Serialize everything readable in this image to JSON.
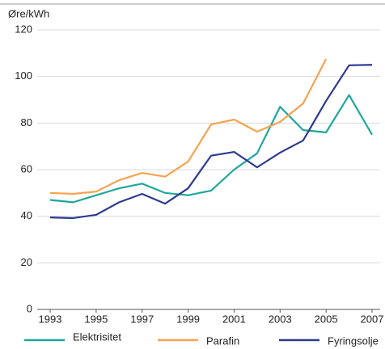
{
  "chart_data": {
    "type": "line",
    "y_label": "Øre/kWh",
    "x": [
      1993,
      1994,
      1995,
      1996,
      1997,
      1998,
      1999,
      2000,
      2001,
      2002,
      2003,
      2004,
      2005,
      2006,
      2007
    ],
    "xlim": [
      1993,
      2007
    ],
    "xticks": [
      1993,
      1995,
      1997,
      1999,
      2001,
      2003,
      2005,
      2007
    ],
    "ylim": [
      0,
      120
    ],
    "yticks": [
      0,
      20,
      40,
      60,
      80,
      100,
      120
    ],
    "grid": true,
    "legend": "bottom",
    "series": [
      {
        "name": "Elektrisitet",
        "color": "#1ea79c",
        "values": [
          47,
          46,
          49,
          52,
          54,
          50,
          49,
          51,
          60,
          67,
          87,
          77,
          76,
          92,
          75
        ]
      },
      {
        "name": "Parafin",
        "color": "#f7a350",
        "values": [
          50,
          49.6,
          50.6,
          55.5,
          58.6,
          57,
          63.5,
          79.4,
          81.5,
          76.3,
          80.5,
          88.4,
          107.5,
          null,
          null
        ]
      },
      {
        "name": "Fyringsolje",
        "color": "#2d3a8f",
        "values": [
          39.5,
          39.2,
          40.6,
          46,
          49.6,
          45.4,
          52,
          66,
          67.6,
          61,
          67.3,
          72.5,
          89.5,
          104.8,
          105
        ]
      }
    ]
  }
}
